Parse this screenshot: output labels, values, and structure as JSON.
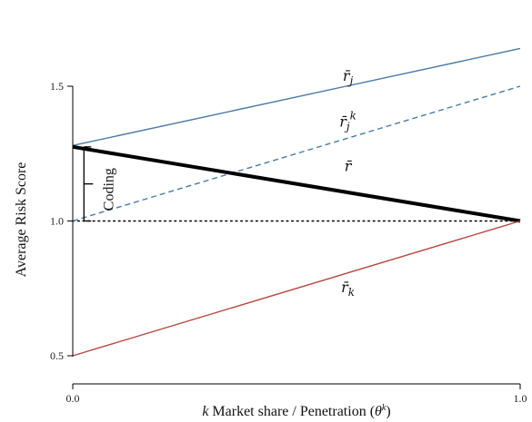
{
  "chart_data": {
    "type": "line",
    "title": "",
    "xlabel_prefix": "k",
    "xlabel_main": " Market share / Penetration (",
    "xlabel_theta": "θ",
    "xlabel_sup": "k",
    "xlabel_close": ")",
    "ylabel": "Average Risk Score",
    "xlim": [
      0,
      1
    ],
    "ylim": [
      0.45,
      1.6
    ],
    "x_ticks": [
      {
        "value": 0,
        "label": "0.0"
      },
      {
        "value": 1,
        "label": "1.0"
      }
    ],
    "y_ticks": [
      {
        "value": 0.5,
        "label": "0.5"
      },
      {
        "value": 1.0,
        "label": "1.0"
      },
      {
        "value": 1.5,
        "label": "1.5"
      }
    ],
    "series": [
      {
        "key": "rj",
        "label": "r̄",
        "sub": "j",
        "sup": "",
        "x": [
          0,
          1
        ],
        "y": [
          1.28,
          1.64
        ],
        "color": "#4a7aa5",
        "style": "solid",
        "label_at": [
          0.615,
          1.52
        ]
      },
      {
        "key": "rjk",
        "label": "r̄",
        "sub": "j",
        "sup": "k",
        "x": [
          0,
          1
        ],
        "y": [
          1.0,
          1.5
        ],
        "color": "#4a7aa5",
        "style": "dashed",
        "label_at": [
          0.615,
          1.35
        ]
      },
      {
        "key": "r",
        "label": "r̄",
        "sub": "",
        "sup": "",
        "x": [
          0,
          1
        ],
        "y": [
          1.275,
          1.0
        ],
        "color": "#000000",
        "style": "bold",
        "label_at": [
          0.615,
          1.185
        ]
      },
      {
        "key": "rk",
        "label": "r̄",
        "sub": "k",
        "sup": "",
        "x": [
          0,
          1
        ],
        "y": [
          0.5,
          1.0
        ],
        "color": "#b5483d",
        "style": "solid",
        "label_at": [
          0.615,
          0.735
        ]
      }
    ],
    "reference_line": {
      "y": 1.0,
      "style": "dotted",
      "color": "#000000"
    },
    "bracket": {
      "x": 0.025,
      "y_from": 1.0,
      "y_to": 1.275,
      "label": "Coding"
    }
  }
}
